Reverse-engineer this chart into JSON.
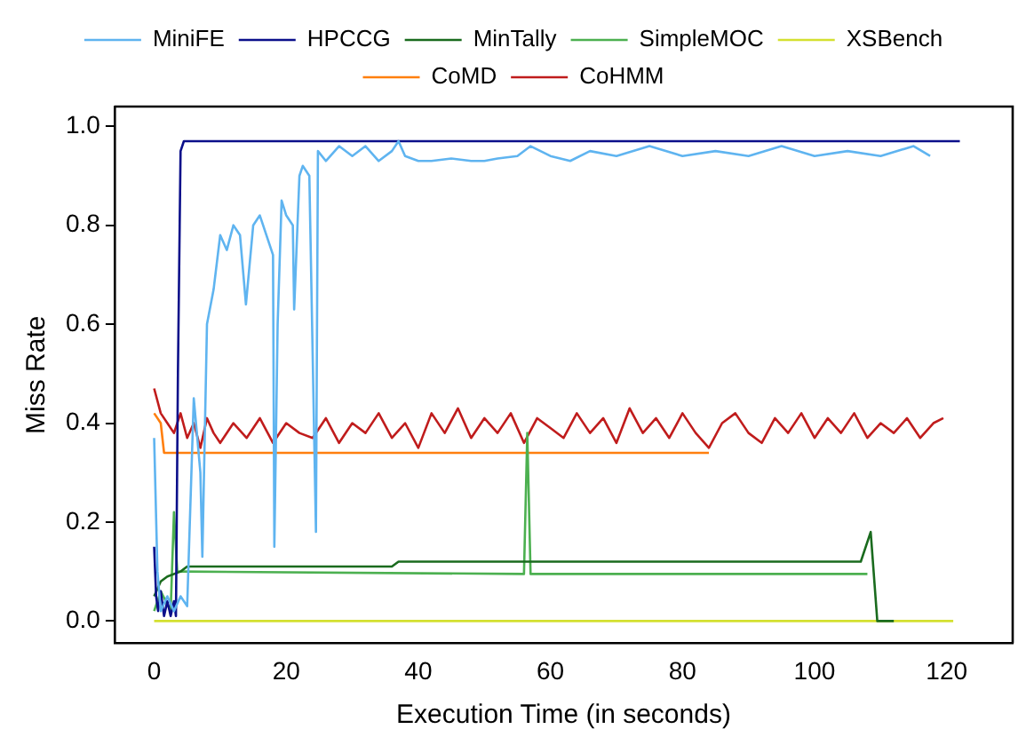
{
  "chart_data": {
    "type": "line",
    "xlabel": "Execution Time (in seconds)",
    "ylabel": "Miss Rate",
    "xlim": [
      -6,
      130
    ],
    "ylim": [
      -0.045,
      1.04
    ],
    "xticks": [
      0,
      20,
      40,
      60,
      80,
      100,
      120
    ],
    "yticks": [
      {
        "value": 0,
        "label": "0.0"
      },
      {
        "value": 0.2,
        "label": "0.2"
      },
      {
        "value": 0.4,
        "label": "0.4"
      },
      {
        "value": 0.6,
        "label": "0.6"
      },
      {
        "value": 0.8,
        "label": "0.8"
      },
      {
        "value": 1,
        "label": "1.0"
      }
    ],
    "grid": false,
    "legend": "top",
    "marker": "none",
    "line_style": "solid",
    "series": [
      {
        "name": "MiniFE",
        "color": "#5fb4f0",
        "x": [
          0,
          0.5,
          1,
          2,
          3,
          4,
          5,
          6,
          7,
          7.3,
          8,
          9,
          10,
          11,
          12,
          13,
          13.9,
          15,
          16,
          17,
          18,
          18.2,
          18.7,
          19.3,
          20,
          21,
          21.2,
          22,
          22.5,
          23.5,
          24.5,
          24.8,
          26,
          28,
          30,
          32,
          34,
          36,
          37,
          38,
          40,
          42,
          45,
          48,
          50,
          52,
          55,
          57,
          60,
          63,
          66,
          70,
          75,
          80,
          85,
          90,
          95,
          100,
          105,
          110,
          115,
          117.5
        ],
        "values": [
          0.37,
          0.1,
          0.02,
          0.05,
          0.02,
          0.05,
          0.03,
          0.45,
          0.3,
          0.13,
          0.6,
          0.67,
          0.78,
          0.75,
          0.8,
          0.78,
          0.64,
          0.8,
          0.82,
          0.78,
          0.74,
          0.15,
          0.6,
          0.85,
          0.82,
          0.8,
          0.63,
          0.9,
          0.92,
          0.9,
          0.18,
          0.95,
          0.93,
          0.96,
          0.94,
          0.96,
          0.93,
          0.95,
          0.97,
          0.94,
          0.93,
          0.93,
          0.935,
          0.93,
          0.93,
          0.935,
          0.94,
          0.96,
          0.94,
          0.93,
          0.95,
          0.94,
          0.96,
          0.94,
          0.95,
          0.94,
          0.96,
          0.94,
          0.95,
          0.94,
          0.96,
          0.94
        ]
      },
      {
        "name": "HPCCG",
        "color": "#0b0f8a",
        "x": [
          0,
          0.3,
          0.6,
          1,
          1.5,
          2,
          2.5,
          3,
          3.3,
          3.6,
          4,
          4.5,
          122
        ],
        "values": [
          0.15,
          0.05,
          0.02,
          0.06,
          0.01,
          0.04,
          0.01,
          0.04,
          0.01,
          0.5,
          0.95,
          0.97,
          0.97
        ]
      },
      {
        "name": "MinTally",
        "color": "#1a6b1e",
        "x": [
          0,
          1,
          2,
          4,
          5,
          36,
          37,
          107,
          108.5,
          109.5,
          112
        ],
        "values": [
          0.05,
          0.08,
          0.09,
          0.1,
          0.11,
          0.11,
          0.12,
          0.12,
          0.18,
          0,
          0
        ]
      },
      {
        "name": "SimpleMOC",
        "color": "#4cb050",
        "x": [
          0,
          1,
          2.5,
          3,
          3.5,
          4,
          56,
          56.5,
          57,
          108
        ],
        "values": [
          0.02,
          0.06,
          0.02,
          0.22,
          0.1,
          0.1,
          0.095,
          0.38,
          0.095,
          0.095
        ]
      },
      {
        "name": "XSBench",
        "color": "#d4e030",
        "x": [
          0,
          121
        ],
        "values": [
          0,
          0
        ]
      },
      {
        "name": "CoMD",
        "color": "#ff7f0e",
        "x": [
          0,
          1,
          1.5,
          84
        ],
        "values": [
          0.42,
          0.4,
          0.34,
          0.34
        ]
      },
      {
        "name": "CoHMM",
        "color": "#c01c1c",
        "x": [
          0,
          1,
          2,
          3,
          4,
          5,
          6,
          7,
          8,
          9,
          10,
          12,
          14,
          16,
          18,
          20,
          22,
          24,
          26,
          28,
          30,
          32,
          34,
          36,
          38,
          40,
          42,
          44,
          46,
          48,
          50,
          52,
          54,
          56,
          58,
          60,
          62,
          64,
          66,
          68,
          70,
          72,
          74,
          76,
          78,
          80,
          82,
          84,
          86,
          88,
          90,
          92,
          94,
          96,
          98,
          100,
          102,
          104,
          106,
          108,
          110,
          112,
          114,
          116,
          118,
          119.5
        ],
        "values": [
          0.47,
          0.42,
          0.4,
          0.38,
          0.42,
          0.37,
          0.4,
          0.35,
          0.41,
          0.38,
          0.36,
          0.4,
          0.37,
          0.41,
          0.36,
          0.4,
          0.38,
          0.37,
          0.41,
          0.36,
          0.4,
          0.38,
          0.42,
          0.37,
          0.4,
          0.35,
          0.42,
          0.38,
          0.43,
          0.37,
          0.41,
          0.38,
          0.42,
          0.36,
          0.41,
          0.39,
          0.37,
          0.42,
          0.38,
          0.41,
          0.36,
          0.43,
          0.38,
          0.41,
          0.37,
          0.42,
          0.38,
          0.35,
          0.4,
          0.42,
          0.38,
          0.36,
          0.41,
          0.38,
          0.42,
          0.37,
          0.41,
          0.38,
          0.42,
          0.37,
          0.4,
          0.38,
          0.41,
          0.37,
          0.4,
          0.41
        ]
      }
    ]
  }
}
